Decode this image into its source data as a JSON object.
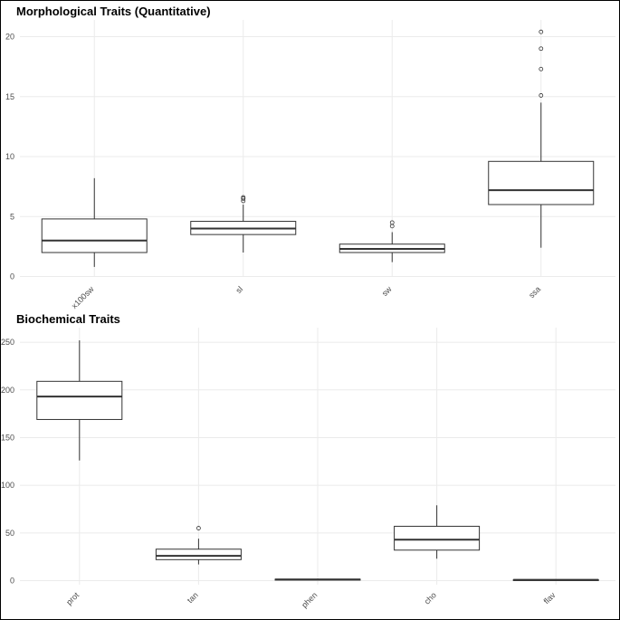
{
  "chart_data": [
    {
      "type": "box",
      "title": "Morphological Traits (Quantitative)",
      "categories": [
        "x100sw",
        "sl",
        "sw",
        "ssa"
      ],
      "ylim": [
        0,
        21
      ],
      "yticks": [
        0,
        5,
        10,
        15,
        20
      ],
      "grid": true,
      "boxes": [
        {
          "name": "x100sw",
          "min": 0.8,
          "q1": 2.0,
          "median": 3.0,
          "q3": 4.8,
          "max": 8.2,
          "outliers": []
        },
        {
          "name": "sl",
          "min": 2.0,
          "q1": 3.5,
          "median": 4.0,
          "q3": 4.6,
          "max": 6.0,
          "outliers": [
            6.3,
            6.5,
            6.6
          ]
        },
        {
          "name": "sw",
          "min": 1.2,
          "q1": 2.0,
          "median": 2.3,
          "q3": 2.7,
          "max": 3.7,
          "outliers": [
            4.2,
            4.5
          ]
        },
        {
          "name": "ssa",
          "min": 2.4,
          "q1": 6.0,
          "median": 7.2,
          "q3": 9.6,
          "max": 14.5,
          "outliers": [
            15.1,
            17.3,
            19.0,
            20.4
          ]
        }
      ]
    },
    {
      "type": "box",
      "title": "Biochemical Traits",
      "categories": [
        "prot",
        "tan",
        "phen",
        "cho",
        "flav"
      ],
      "ylim": [
        0,
        252
      ],
      "yticks": [
        0,
        50,
        100,
        150,
        200,
        250
      ],
      "grid": true,
      "boxes": [
        {
          "name": "prot",
          "min": 126,
          "q1": 169,
          "median": 193,
          "q3": 209,
          "max": 252,
          "outliers": []
        },
        {
          "name": "tan",
          "min": 17,
          "q1": 22,
          "median": 26,
          "q3": 33,
          "max": 44,
          "outliers": [
            55
          ]
        },
        {
          "name": "phen",
          "min": 0.5,
          "q1": 1.0,
          "median": 1.2,
          "q3": 1.5,
          "max": 2.0,
          "outliers": []
        },
        {
          "name": "cho",
          "min": 23,
          "q1": 32,
          "median": 43,
          "q3": 57,
          "max": 79,
          "outliers": []
        },
        {
          "name": "flav",
          "min": 0.3,
          "q1": 0.6,
          "median": 0.8,
          "q3": 1.0,
          "max": 1.3,
          "outliers": []
        }
      ]
    }
  ]
}
